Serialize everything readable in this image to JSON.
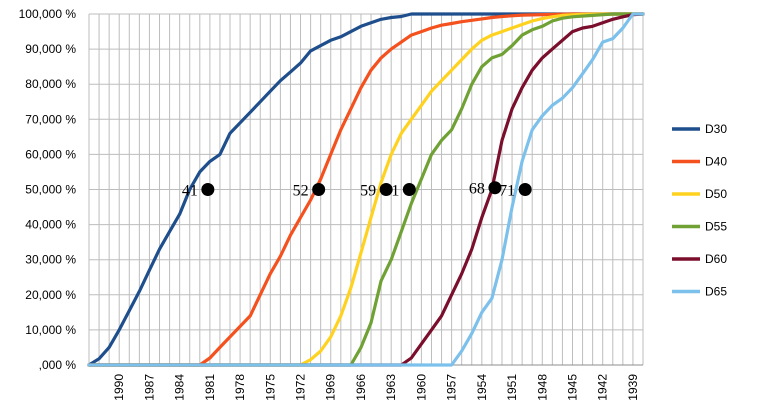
{
  "chart_data": {
    "type": "line",
    "title": "",
    "xlabel": "",
    "ylabel": "",
    "ylim": [
      0,
      100000
    ],
    "x_order": "descending",
    "x_range": [
      1993,
      1938
    ],
    "yticks": [
      0,
      10000,
      20000,
      30000,
      40000,
      50000,
      60000,
      70000,
      80000,
      90000,
      100000
    ],
    "ytick_labels": [
      ",000 %",
      "10,000 %",
      "20,000 %",
      "30,000 %",
      "40,000 %",
      "50,000 %",
      "60,000 %",
      "70,000 %",
      "80,000 %",
      "90,000 %",
      "100,000 %"
    ],
    "xtick_labels": [
      "1990",
      "1987",
      "1984",
      "1981",
      "1978",
      "1975",
      "1972",
      "1969",
      "1966",
      "1963",
      "1960",
      "1957",
      "1954",
      "1951",
      "1948",
      "1945",
      "1942",
      "1939"
    ],
    "grid": true,
    "legend_position": "right",
    "series": [
      {
        "name": "D30",
        "color": "#1f4e8c",
        "x": [
          1993,
          1992,
          1991,
          1990,
          1989,
          1988,
          1987,
          1986,
          1985,
          1984,
          1983,
          1982,
          1981,
          1980,
          1979,
          1978,
          1977,
          1976,
          1975,
          1974,
          1973,
          1972,
          1971,
          1970,
          1969,
          1968,
          1967,
          1966,
          1965,
          1964,
          1963,
          1962,
          1961,
          1960,
          1959,
          1950,
          1938
        ],
        "y": [
          0,
          1800,
          5000,
          10000,
          15500,
          21000,
          27000,
          33000,
          38000,
          43000,
          50000,
          55000,
          58000,
          60000,
          66000,
          69000,
          72000,
          75000,
          78000,
          81000,
          83500,
          86000,
          89500,
          91000,
          92500,
          93500,
          95000,
          96500,
          97500,
          98500,
          99000,
          99300,
          100000,
          100000,
          100000,
          100000,
          100000
        ]
      },
      {
        "name": "D40",
        "color": "#f4511e",
        "x": [
          1993,
          1982,
          1981,
          1980,
          1979,
          1978,
          1977,
          1976,
          1975,
          1974,
          1973,
          1972,
          1971,
          1970,
          1969,
          1968,
          1967,
          1966,
          1965,
          1964,
          1963,
          1962,
          1961,
          1960,
          1959,
          1958,
          1957,
          1956,
          1955,
          1954,
          1953,
          1952,
          1950,
          1945,
          1938
        ],
        "y": [
          0,
          0,
          2000,
          5000,
          8000,
          11000,
          14000,
          20000,
          26000,
          31000,
          37000,
          42000,
          47000,
          53000,
          60000,
          67000,
          73000,
          79000,
          84000,
          87500,
          90000,
          92000,
          94000,
          95000,
          96000,
          96800,
          97300,
          97800,
          98200,
          98600,
          99000,
          99300,
          99700,
          100000,
          100000
        ]
      },
      {
        "name": "D50",
        "color": "#ffd21f",
        "x": [
          1993,
          1972,
          1971,
          1970,
          1969,
          1968,
          1967,
          1966,
          1965,
          1964,
          1963,
          1962,
          1961,
          1960,
          1959,
          1958,
          1957,
          1956,
          1955,
          1954,
          1953,
          1952,
          1951,
          1950,
          1949,
          1948,
          1947,
          1946,
          1944,
          1942,
          1938
        ],
        "y": [
          0,
          0,
          1500,
          4000,
          8000,
          14000,
          22000,
          32000,
          42000,
          52000,
          60000,
          66000,
          70000,
          74000,
          78000,
          81000,
          84000,
          87000,
          90000,
          92500,
          94000,
          95000,
          96000,
          97000,
          98000,
          98700,
          99200,
          99600,
          99900,
          100000,
          100000
        ]
      },
      {
        "name": "D55",
        "color": "#70a135",
        "x": [
          1993,
          1967,
          1966,
          1965,
          1964,
          1963,
          1962,
          1961,
          1960,
          1959,
          1958,
          1957,
          1956,
          1955,
          1954,
          1953,
          1952,
          1951,
          1950,
          1949,
          1948,
          1947,
          1946,
          1945,
          1943,
          1941,
          1938
        ],
        "y": [
          0,
          0,
          5000,
          12000,
          24000,
          30000,
          38000,
          46000,
          53000,
          60000,
          64000,
          67000,
          73000,
          80000,
          85000,
          87500,
          88500,
          91000,
          94000,
          95500,
          96500,
          98000,
          98800,
          99200,
          99600,
          100000,
          100000
        ]
      },
      {
        "name": "D60",
        "color": "#7a0e2c",
        "x": [
          1993,
          1962,
          1961,
          1960,
          1959,
          1958,
          1957,
          1956,
          1955,
          1954,
          1953,
          1952,
          1951,
          1950,
          1949,
          1948,
          1947,
          1946,
          1945,
          1944,
          1943,
          1942,
          1941,
          1940,
          1939,
          1938
        ],
        "y": [
          0,
          0,
          2000,
          6000,
          10000,
          14000,
          20000,
          26000,
          33000,
          42000,
          50000,
          64000,
          73000,
          79000,
          84000,
          87500,
          90000,
          92500,
          95000,
          96000,
          96500,
          97500,
          98500,
          99200,
          99800,
          100000
        ]
      },
      {
        "name": "D65",
        "color": "#7cc0ec",
        "x": [
          1993,
          1957,
          1956,
          1955,
          1954,
          1953,
          1952,
          1951,
          1950,
          1949,
          1948,
          1947,
          1946,
          1945,
          1944,
          1943,
          1942,
          1941,
          1940,
          1939,
          1938
        ],
        "y": [
          0,
          0,
          4000,
          9000,
          15000,
          19000,
          30000,
          45000,
          58000,
          67000,
          71000,
          74000,
          76000,
          79000,
          83000,
          87000,
          92000,
          93000,
          96000,
          100000,
          100000
        ]
      }
    ],
    "markers": [
      {
        "label": "41",
        "x": 1981.2,
        "y": 50000
      },
      {
        "label": "52",
        "x": 1970.2,
        "y": 50000
      },
      {
        "label": "59",
        "x": 1963.5,
        "y": 50000
      },
      {
        "label": "61",
        "x": 1961.2,
        "y": 50000
      },
      {
        "label": "68",
        "x": 1952.7,
        "y": 50500
      },
      {
        "label": "71",
        "x": 1949.7,
        "y": 50000
      }
    ]
  }
}
